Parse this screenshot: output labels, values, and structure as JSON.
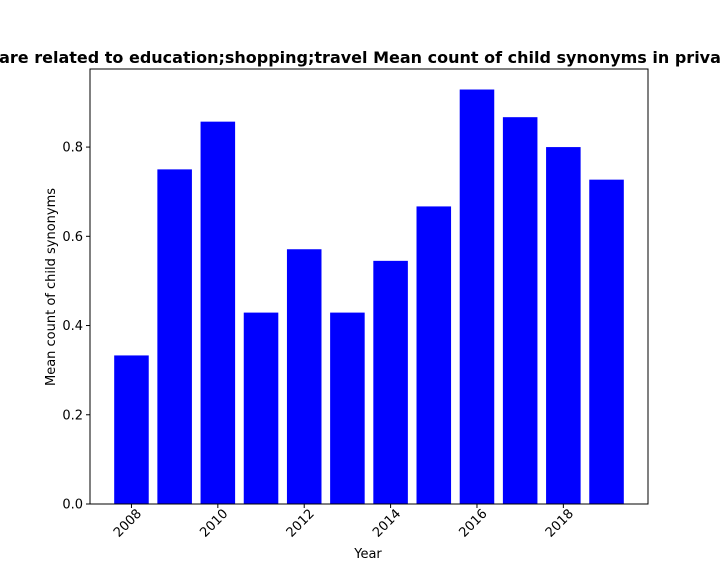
{
  "chart_data": {
    "type": "bar",
    "title": "are related to education;shopping;travel Mean count of child synonyms in priva",
    "xlabel": "Year",
    "ylabel": "Mean count of child synonyms",
    "categories": [
      2008,
      2009,
      2010,
      2011,
      2012,
      2013,
      2014,
      2015,
      2016,
      2017,
      2018,
      2019
    ],
    "values": [
      0.333,
      0.75,
      0.857,
      0.429,
      0.571,
      0.429,
      0.545,
      0.667,
      0.929,
      0.867,
      0.8,
      0.727
    ],
    "xticks": [
      2008,
      2010,
      2012,
      2014,
      2016,
      2018
    ],
    "xtick_labels": [
      "2008",
      "2010",
      "2012",
      "2014",
      "2016",
      "2018"
    ],
    "yticks": [
      0.0,
      0.2,
      0.4,
      0.6,
      0.8
    ],
    "ytick_labels": [
      "0.0",
      "0.2",
      "0.4",
      "0.6",
      "0.8"
    ],
    "xlim": [
      2007.04,
      2019.96
    ],
    "ylim": [
      0,
      0.975
    ],
    "bar_color": "#0000ff",
    "grid": false,
    "legend": "none"
  }
}
